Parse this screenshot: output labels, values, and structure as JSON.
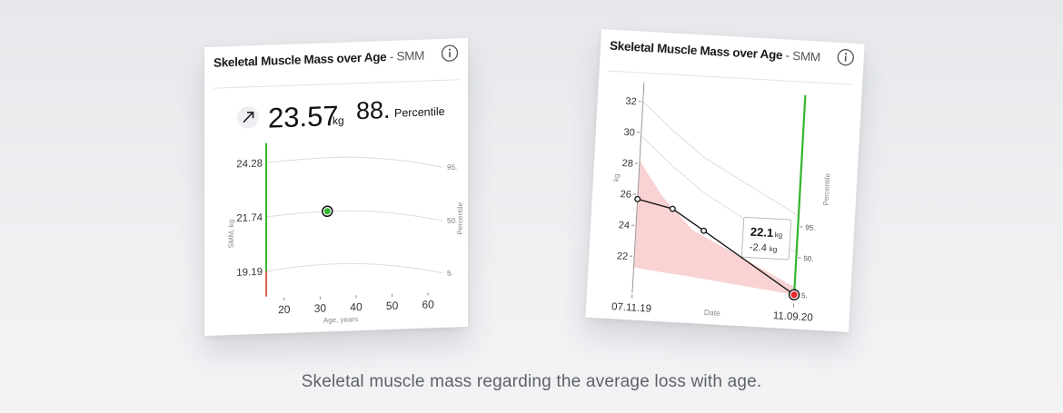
{
  "caption": "Skeletal muscle mass regarding the average loss with age.",
  "left_card": {
    "title_bold": "Skeletal Muscle Mass over Age",
    "title_sep": " - ",
    "title_unit": "SMM",
    "trend_icon": "arrow-up-right-icon",
    "value": "23.57",
    "value_unit": "kg",
    "percentile_value": "88.",
    "percentile_label": "Percentile"
  },
  "right_card": {
    "title_bold": "Skeletal Muscle Mass over Age",
    "title_sep": " - ",
    "title_unit": "SMM",
    "tooltip_value": "22.1",
    "tooltip_unit": "kg",
    "tooltip_delta": "-2.4",
    "tooltip_delta_unit": "kg"
  },
  "colors": {
    "green": "#33b52e",
    "red": "#e0604f",
    "line": "#1a1a1a",
    "band_fill": "#f9d3d3",
    "percentile_line": "#dcdcdc"
  },
  "chart_data": [
    {
      "type": "line",
      "title": "Skeletal Muscle Mass over Age - SMM",
      "xlabel": "Age, years",
      "ylabel": "SMM, kg",
      "y2label": "Percentile",
      "x_ticks": [
        20,
        30,
        40,
        50,
        60
      ],
      "xlim": [
        15,
        64
      ],
      "y_ticks": [
        "24.28",
        "21.74",
        "19.19"
      ],
      "ylim": [
        18.0,
        25.2
      ],
      "percentile_curves": [
        {
          "name": "95.",
          "x": [
            15,
            25,
            35,
            45,
            55,
            64
          ],
          "y": [
            24.28,
            24.38,
            24.42,
            24.32,
            24.1,
            23.78
          ]
        },
        {
          "name": "50.",
          "x": [
            15,
            25,
            35,
            45,
            55,
            64
          ],
          "y": [
            21.74,
            21.86,
            21.9,
            21.82,
            21.58,
            21.28
          ]
        },
        {
          "name": "5.",
          "x": [
            15,
            25,
            35,
            45,
            55,
            64
          ],
          "y": [
            19.19,
            19.36,
            19.42,
            19.34,
            19.12,
            18.82
          ]
        }
      ],
      "point": {
        "x": 32,
        "y": 21.9
      },
      "scale_bar": [
        {
          "from": 19.19,
          "to": 25.2,
          "color": "#33b52e"
        },
        {
          "from": 18.0,
          "to": 19.19,
          "color": "#e0604f"
        }
      ]
    },
    {
      "type": "line",
      "title": "Skeletal Muscle Mass over Age - SMM",
      "xlabel": "Date",
      "ylabel": "kg",
      "y2label": "Percentile",
      "x_ticks": [
        "07.11.19",
        "11.09.20"
      ],
      "y_ticks": [
        22,
        24,
        26,
        28,
        30,
        32
      ],
      "ylim": [
        20.0,
        33.0
      ],
      "xlim": [
        0,
        1
      ],
      "series": [
        {
          "x": [
            0.0,
            0.22,
            0.42,
            1.0
          ],
          "y": [
            25.7,
            25.2,
            23.9,
            20.1
          ]
        }
      ],
      "band": {
        "x": [
          0.0,
          0.15,
          0.35,
          1.0
        ],
        "upper": [
          28.2,
          26.0,
          23.9,
          20.6
        ],
        "lower": [
          21.3,
          21.1,
          20.9,
          20.1
        ]
      },
      "guide_lines": [
        {
          "x": [
            0.0,
            0.2,
            0.4,
            1.0
          ],
          "y": [
            32.0,
            30.2,
            28.6,
            25.2
          ]
        },
        {
          "x": [
            0.0,
            0.2,
            0.4,
            1.0
          ],
          "y": [
            29.8,
            28.0,
            26.4,
            22.8
          ]
        }
      ],
      "right_scale_ticks": [
        "95.",
        "50.",
        "5."
      ],
      "last_point": {
        "x": 1.0,
        "y": 20.1
      }
    }
  ]
}
